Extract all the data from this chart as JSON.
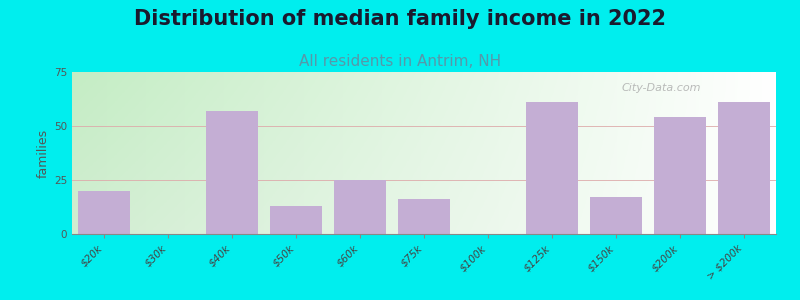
{
  "title": "Distribution of median family income in 2022",
  "subtitle": "All residents in Antrim, NH",
  "ylabel": "families",
  "bar_color": "#c4aed4",
  "background_color": "#00eeee",
  "plot_bg_left": "#d8eed8",
  "plot_bg_right": "#f8f8ff",
  "title_fontsize": 15,
  "subtitle_fontsize": 11,
  "subtitle_color": "#5599aa",
  "ylabel_fontsize": 9,
  "tick_fontsize": 7.5,
  "ylim": [
    0,
    75
  ],
  "yticks": [
    0,
    25,
    50,
    75
  ],
  "watermark": "City-Data.com",
  "categories": [
    "$20k",
    "$30k",
    "$40k",
    "$50k",
    "$60k",
    "$75k",
    "$100k",
    "$125k",
    "$150k",
    "$200k",
    "> $200k"
  ],
  "values": [
    20,
    0,
    57,
    13,
    25,
    16,
    0,
    61,
    17,
    54,
    61
  ],
  "bar_lefts": [
    0,
    1,
    2,
    3,
    4,
    5,
    6,
    7,
    8,
    9,
    10
  ],
  "bar_widths": [
    0.8,
    0.8,
    0.8,
    0.8,
    0.8,
    0.8,
    0.8,
    0.8,
    0.8,
    0.8,
    0.8
  ]
}
